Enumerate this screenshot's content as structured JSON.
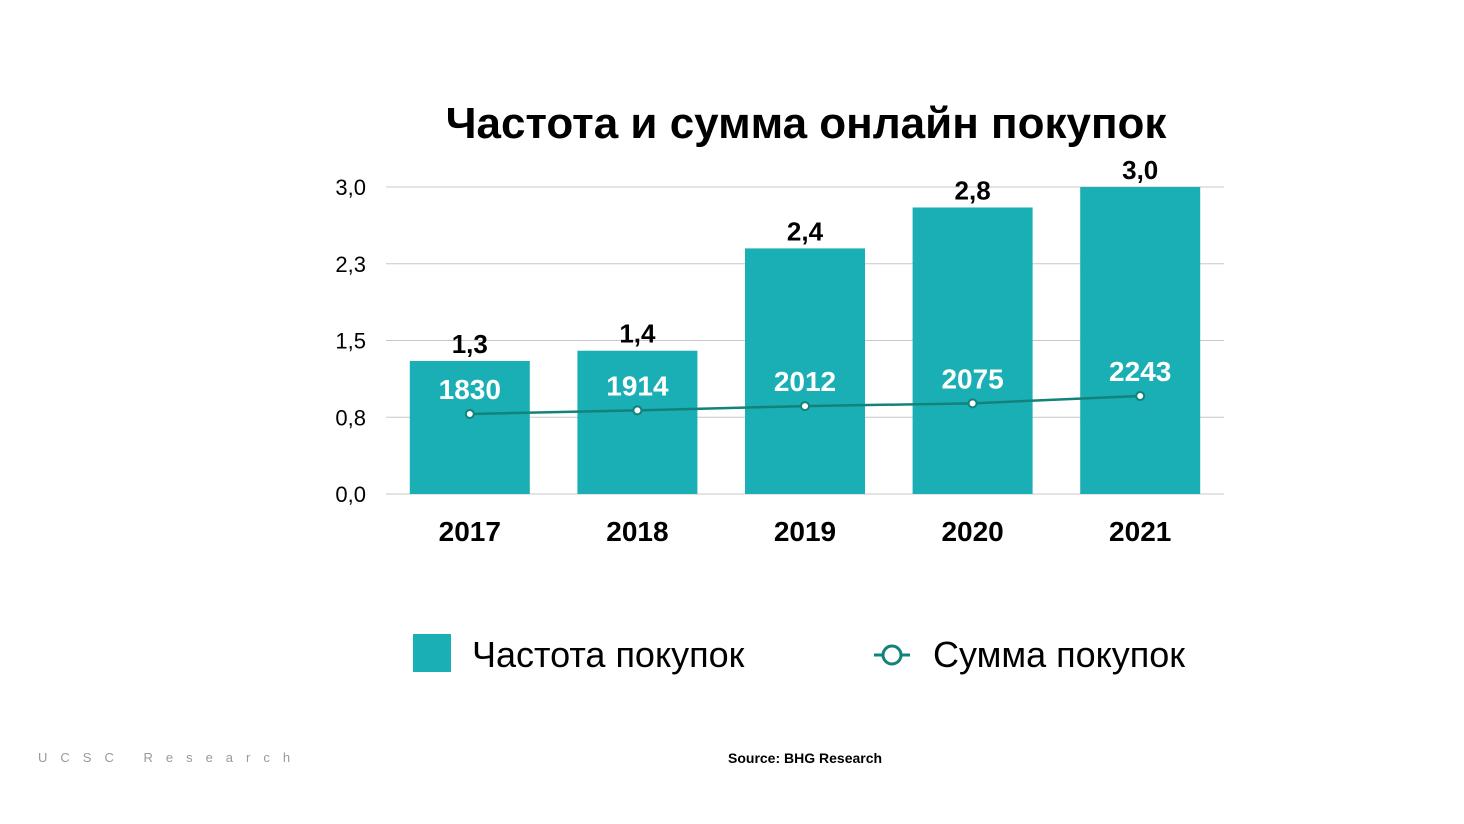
{
  "chart_data": {
    "type": "bar",
    "title": "Частота и сумма онлайн покупок",
    "categories": [
      "2017",
      "2018",
      "2019",
      "2020",
      "2021"
    ],
    "yticks": [
      "0,0",
      "0,8",
      "1,5",
      "2,3",
      "3,0"
    ],
    "ylim": [
      0,
      3.0
    ],
    "grid": true,
    "series": [
      {
        "name": "Частота покупок",
        "type": "bar",
        "values": [
          1.3,
          1.4,
          2.4,
          2.8,
          3.0
        ],
        "labels": [
          "1,3",
          "1,4",
          "2,4",
          "2,8",
          "3,0"
        ],
        "color": "#1AAFB5"
      },
      {
        "name": "Сумма покупок",
        "type": "line",
        "values": [
          1830,
          1914,
          2012,
          2075,
          2243
        ],
        "labels": [
          "1830",
          "1914",
          "2012",
          "2075",
          "2243"
        ],
        "color": "#13827A"
      }
    ],
    "legend_position": "bottom-center"
  },
  "footer": {
    "brand": "UCSC Research",
    "source": "Source: BHG Research"
  }
}
